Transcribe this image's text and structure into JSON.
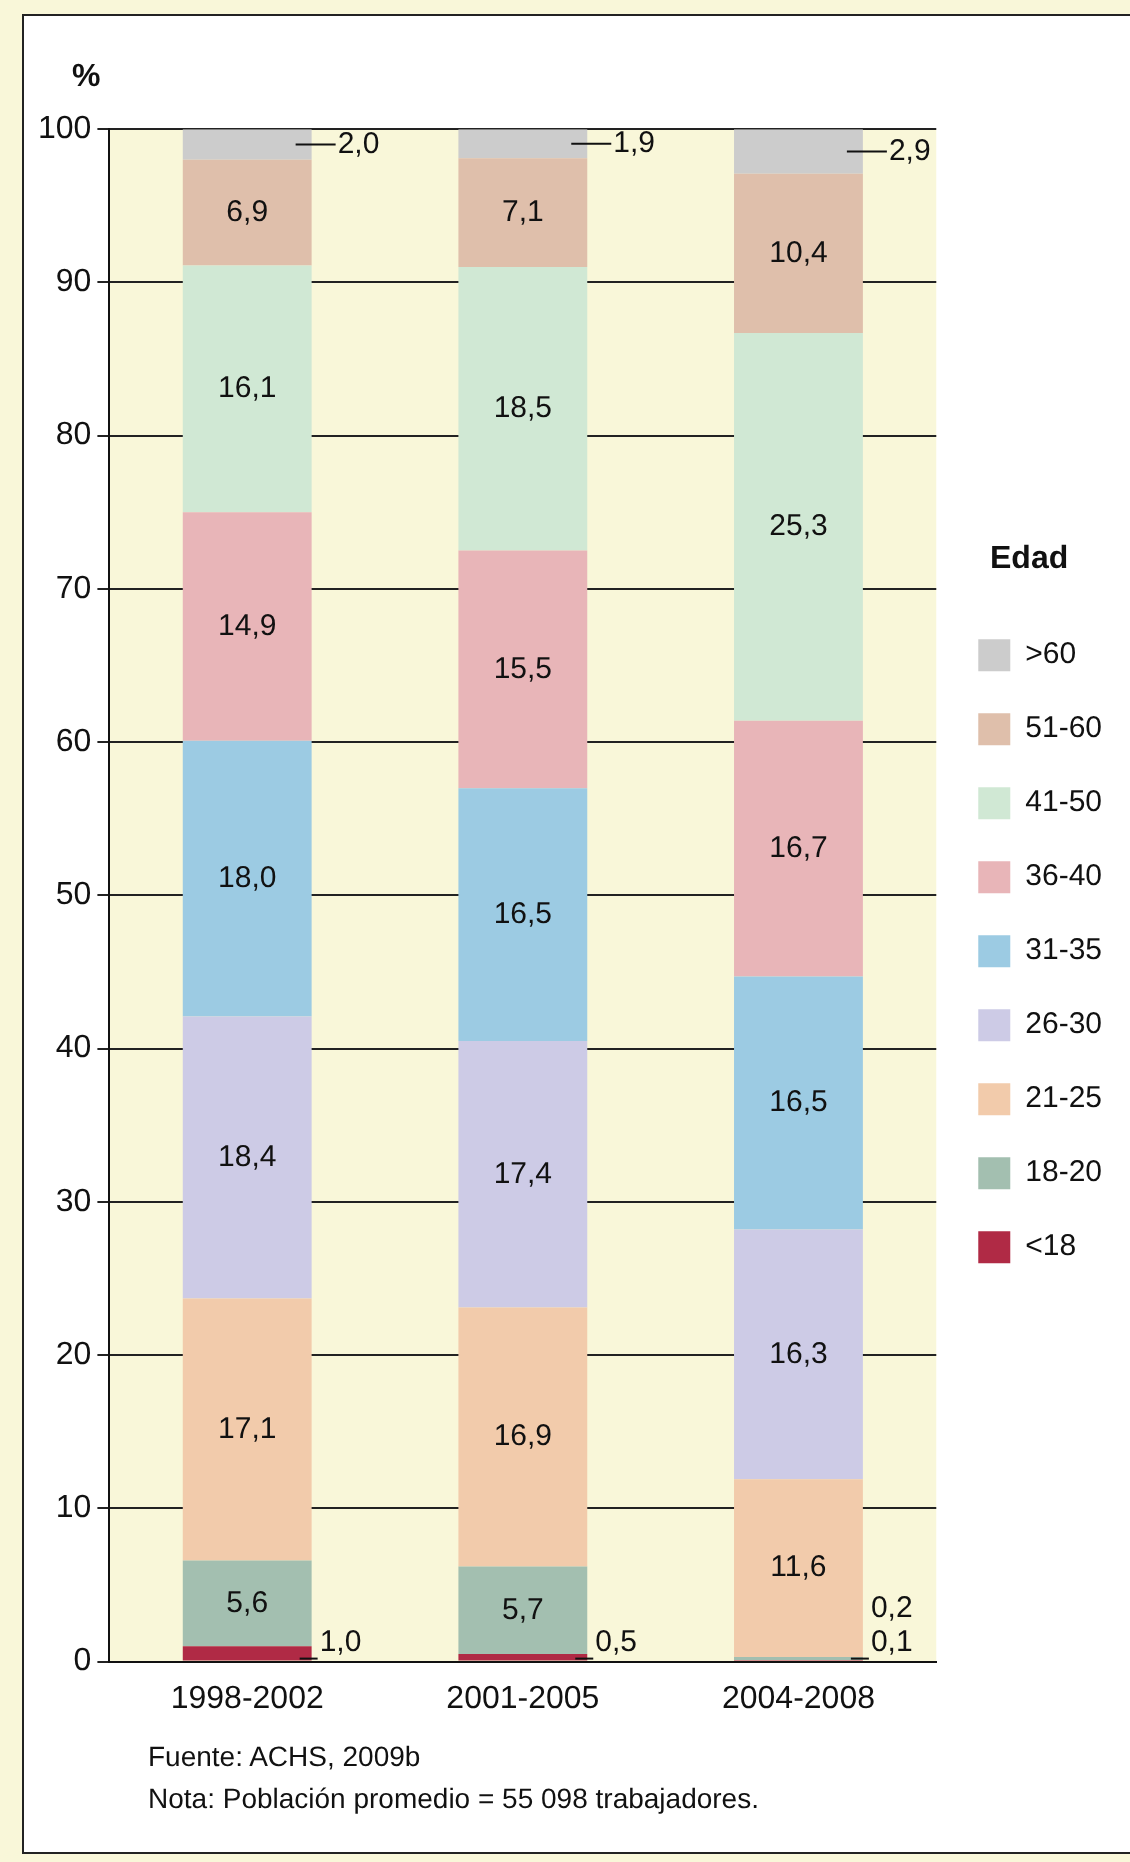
{
  "chart_data": {
    "type": "bar",
    "stacked": true,
    "ylabel": "%",
    "legend_title": "Edad",
    "categories": [
      "1998-2002",
      "2001-2005",
      "2004-2008"
    ],
    "ylim": [
      0,
      100
    ],
    "yticks": [
      0,
      10,
      20,
      30,
      40,
      50,
      60,
      70,
      80,
      90,
      100
    ],
    "grid": "y",
    "legend": "right",
    "series": [
      {
        "name": "<18",
        "color": "#b02a45",
        "values": [
          1.0,
          0.5,
          0.1
        ],
        "value_labels": [
          "1,0",
          "0,5",
          "0,1"
        ]
      },
      {
        "name": "18-20",
        "color": "#a3bfb0",
        "values": [
          5.6,
          5.7,
          0.2
        ],
        "value_labels": [
          "5,6",
          "5,7",
          "0,2"
        ]
      },
      {
        "name": "21-25",
        "color": "#f2cbab",
        "values": [
          17.1,
          16.9,
          11.6
        ],
        "value_labels": [
          "17,1",
          "16,9",
          "11,6"
        ]
      },
      {
        "name": "26-30",
        "color": "#cdcbe6",
        "values": [
          18.4,
          17.4,
          16.3
        ],
        "value_labels": [
          "18,4",
          "17,4",
          "16,3"
        ]
      },
      {
        "name": "31-35",
        "color": "#9ccbe3",
        "values": [
          18.0,
          16.5,
          16.5
        ],
        "value_labels": [
          "18,0",
          "16,5",
          "16,5"
        ]
      },
      {
        "name": "36-40",
        "color": "#e8b5b8",
        "values": [
          14.9,
          15.5,
          16.7
        ],
        "value_labels": [
          "14,9",
          "15,5",
          "16,7"
        ]
      },
      {
        "name": "41-50",
        "color": "#d0e8d4",
        "values": [
          16.1,
          18.5,
          25.3
        ],
        "value_labels": [
          "16,1",
          "18,5",
          "25,3"
        ]
      },
      {
        "name": "51-60",
        "color": "#dfbfab",
        "values": [
          6.9,
          7.1,
          10.4
        ],
        "value_labels": [
          "6,9",
          "7,1",
          "10,4"
        ]
      },
      {
        "name": ">60",
        "color": "#cccccc",
        "values": [
          2.0,
          1.9,
          2.9
        ],
        "value_labels": [
          "2,0",
          "1,9",
          "2,9"
        ]
      }
    ],
    "annotations": [
      "Fuente: ACHS, 2009b",
      "Nota: Población promedio = 55 098 trabajadores."
    ]
  }
}
